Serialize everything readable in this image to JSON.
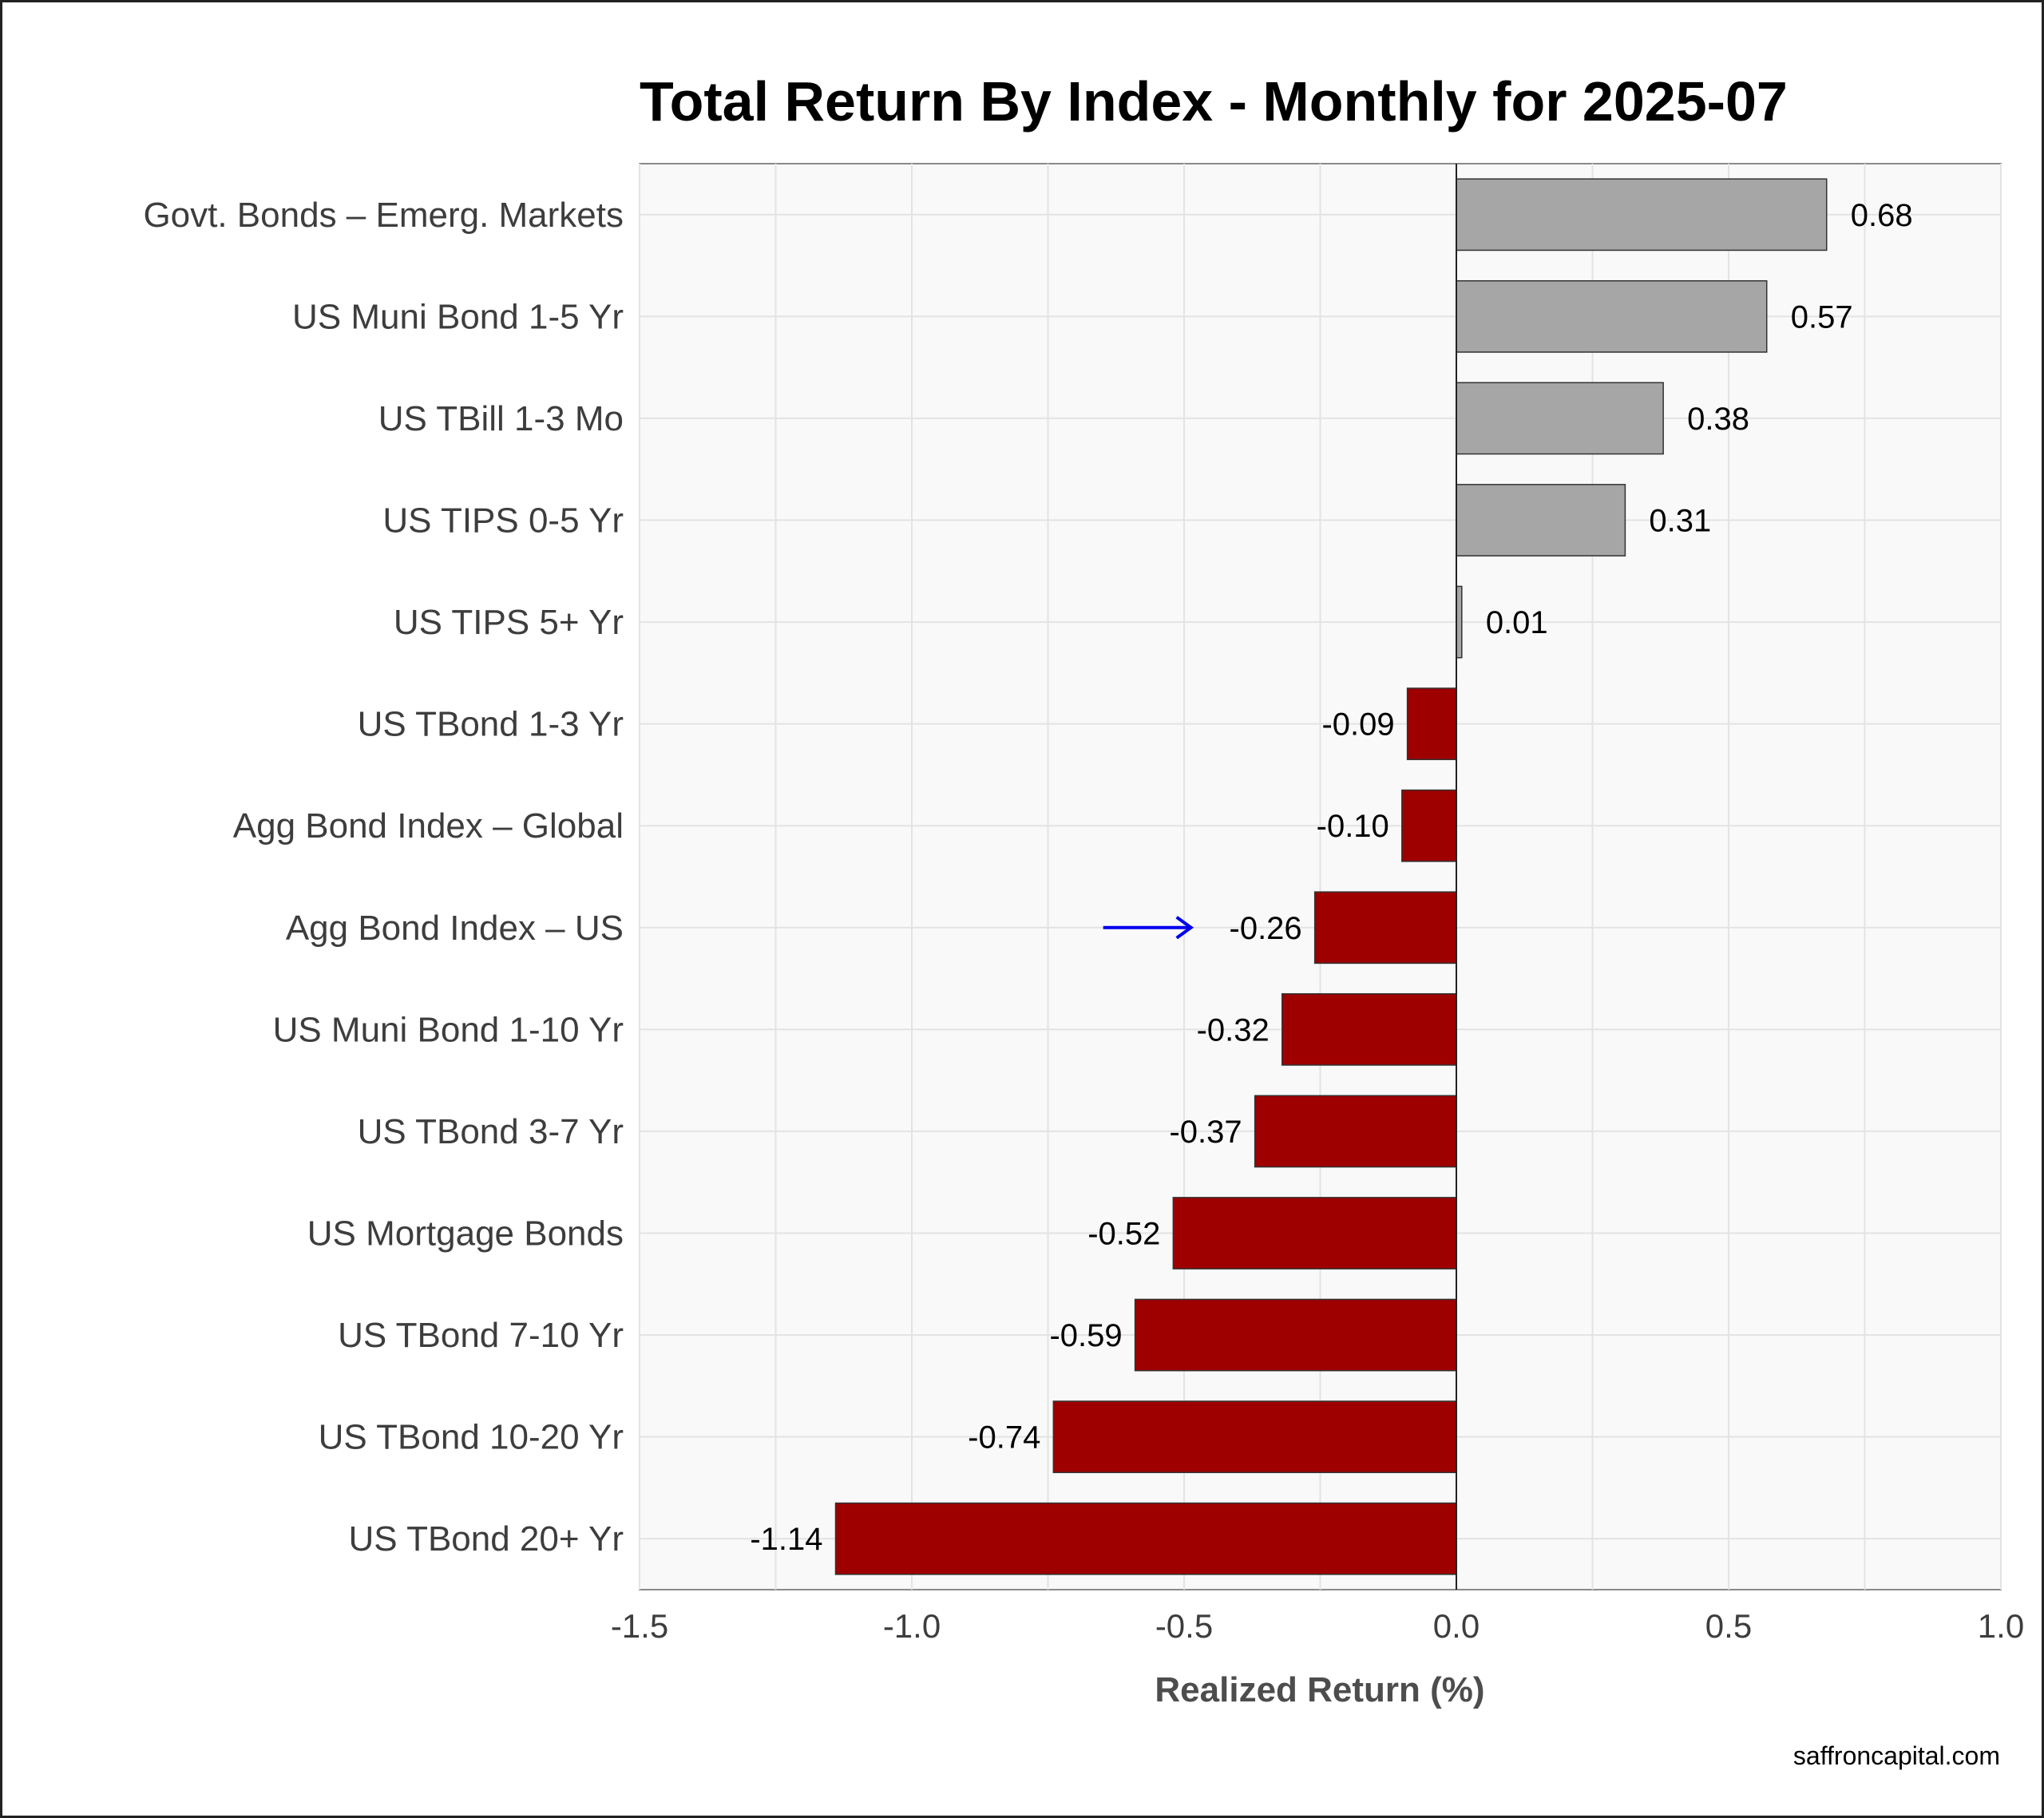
{
  "chart_data": {
    "type": "bar",
    "orientation": "horizontal",
    "title": "Total Return By Index - Monthly for 2025-07",
    "xlabel": "Realized Return (%)",
    "ylabel": "",
    "xlim": [
      -1.5,
      1.0
    ],
    "x_ticks": [
      -1.5,
      -1.0,
      -0.5,
      0.0,
      0.5,
      1.0
    ],
    "x_tick_labels": [
      "-1.5",
      "-1.0",
      "-0.5",
      "0.0",
      "0.5",
      "1.0"
    ],
    "grid": true,
    "legend": "none",
    "categories": [
      "Govt. Bonds – Emerg. Markets",
      "US Muni Bond 1-5 Yr",
      "US TBill 1-3 Mo",
      "US TIPS 0-5 Yr",
      "US TIPS 5+ Yr",
      "US TBond 1-3 Yr",
      "Agg Bond Index – Global",
      "Agg Bond Index – US",
      "US Muni Bond 1-10 Yr",
      "US TBond 3-7 Yr",
      "US Mortgage Bonds",
      "US TBond 7-10 Yr",
      "US TBond 10-20 Yr",
      "US TBond 20+ Yr"
    ],
    "values": [
      0.68,
      0.57,
      0.38,
      0.31,
      0.01,
      -0.09,
      -0.1,
      -0.26,
      -0.32,
      -0.37,
      -0.52,
      -0.59,
      -0.74,
      -1.14
    ],
    "value_labels": [
      "0.68",
      "0.57",
      "0.38",
      "0.31",
      "0.01",
      "-0.09",
      "-0.10",
      "-0.26",
      "-0.32",
      "-0.37",
      "-0.52",
      "-0.59",
      "-0.74",
      "-1.14"
    ],
    "highlight": "Agg Bond Index – US",
    "colors": {
      "positive": "#a6a6a6",
      "negative": "#9e0000",
      "highlight_label": "#0000ee",
      "arrow": "#0000ee",
      "panel_bg": "#f9f9f9",
      "grid": "#e3e3e3"
    }
  },
  "credit": "saffroncapital.com"
}
